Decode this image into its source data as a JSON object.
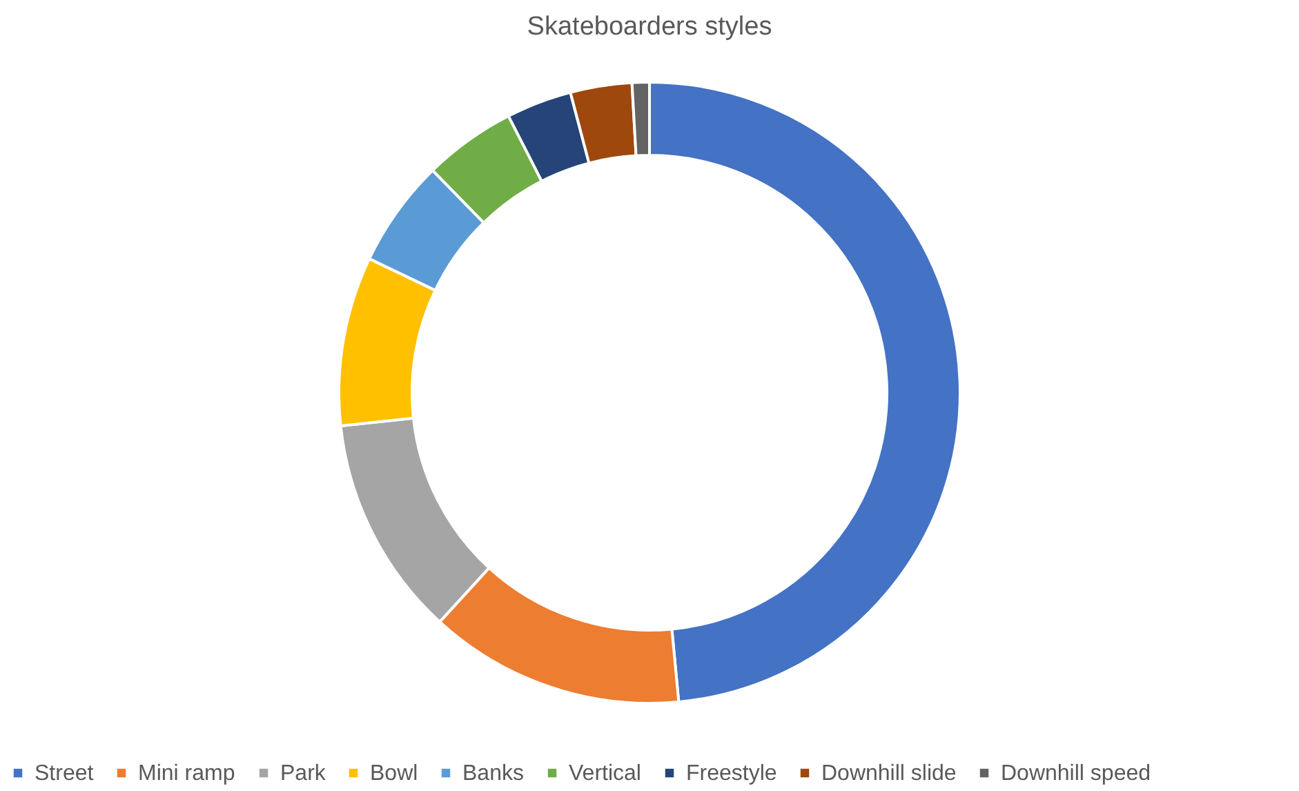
{
  "chart_data": {
    "type": "donut",
    "title": "Skateboarders styles",
    "categories": [
      "Street",
      "Mini ramp",
      "Park",
      "Bowl",
      "Banks",
      "Vertical",
      "Freestyle",
      "Downhill slide",
      "Downhill speed"
    ],
    "values": [
      48.5,
      13.3,
      11.5,
      8.8,
      5.6,
      4.8,
      3.4,
      3.2,
      0.9
    ],
    "colors": [
      "#4472c4",
      "#ed7d31",
      "#a5a5a5",
      "#ffc000",
      "#5b9bd5",
      "#70ad47",
      "#264478",
      "#9e480e",
      "#636363"
    ],
    "legend": "bottom"
  }
}
